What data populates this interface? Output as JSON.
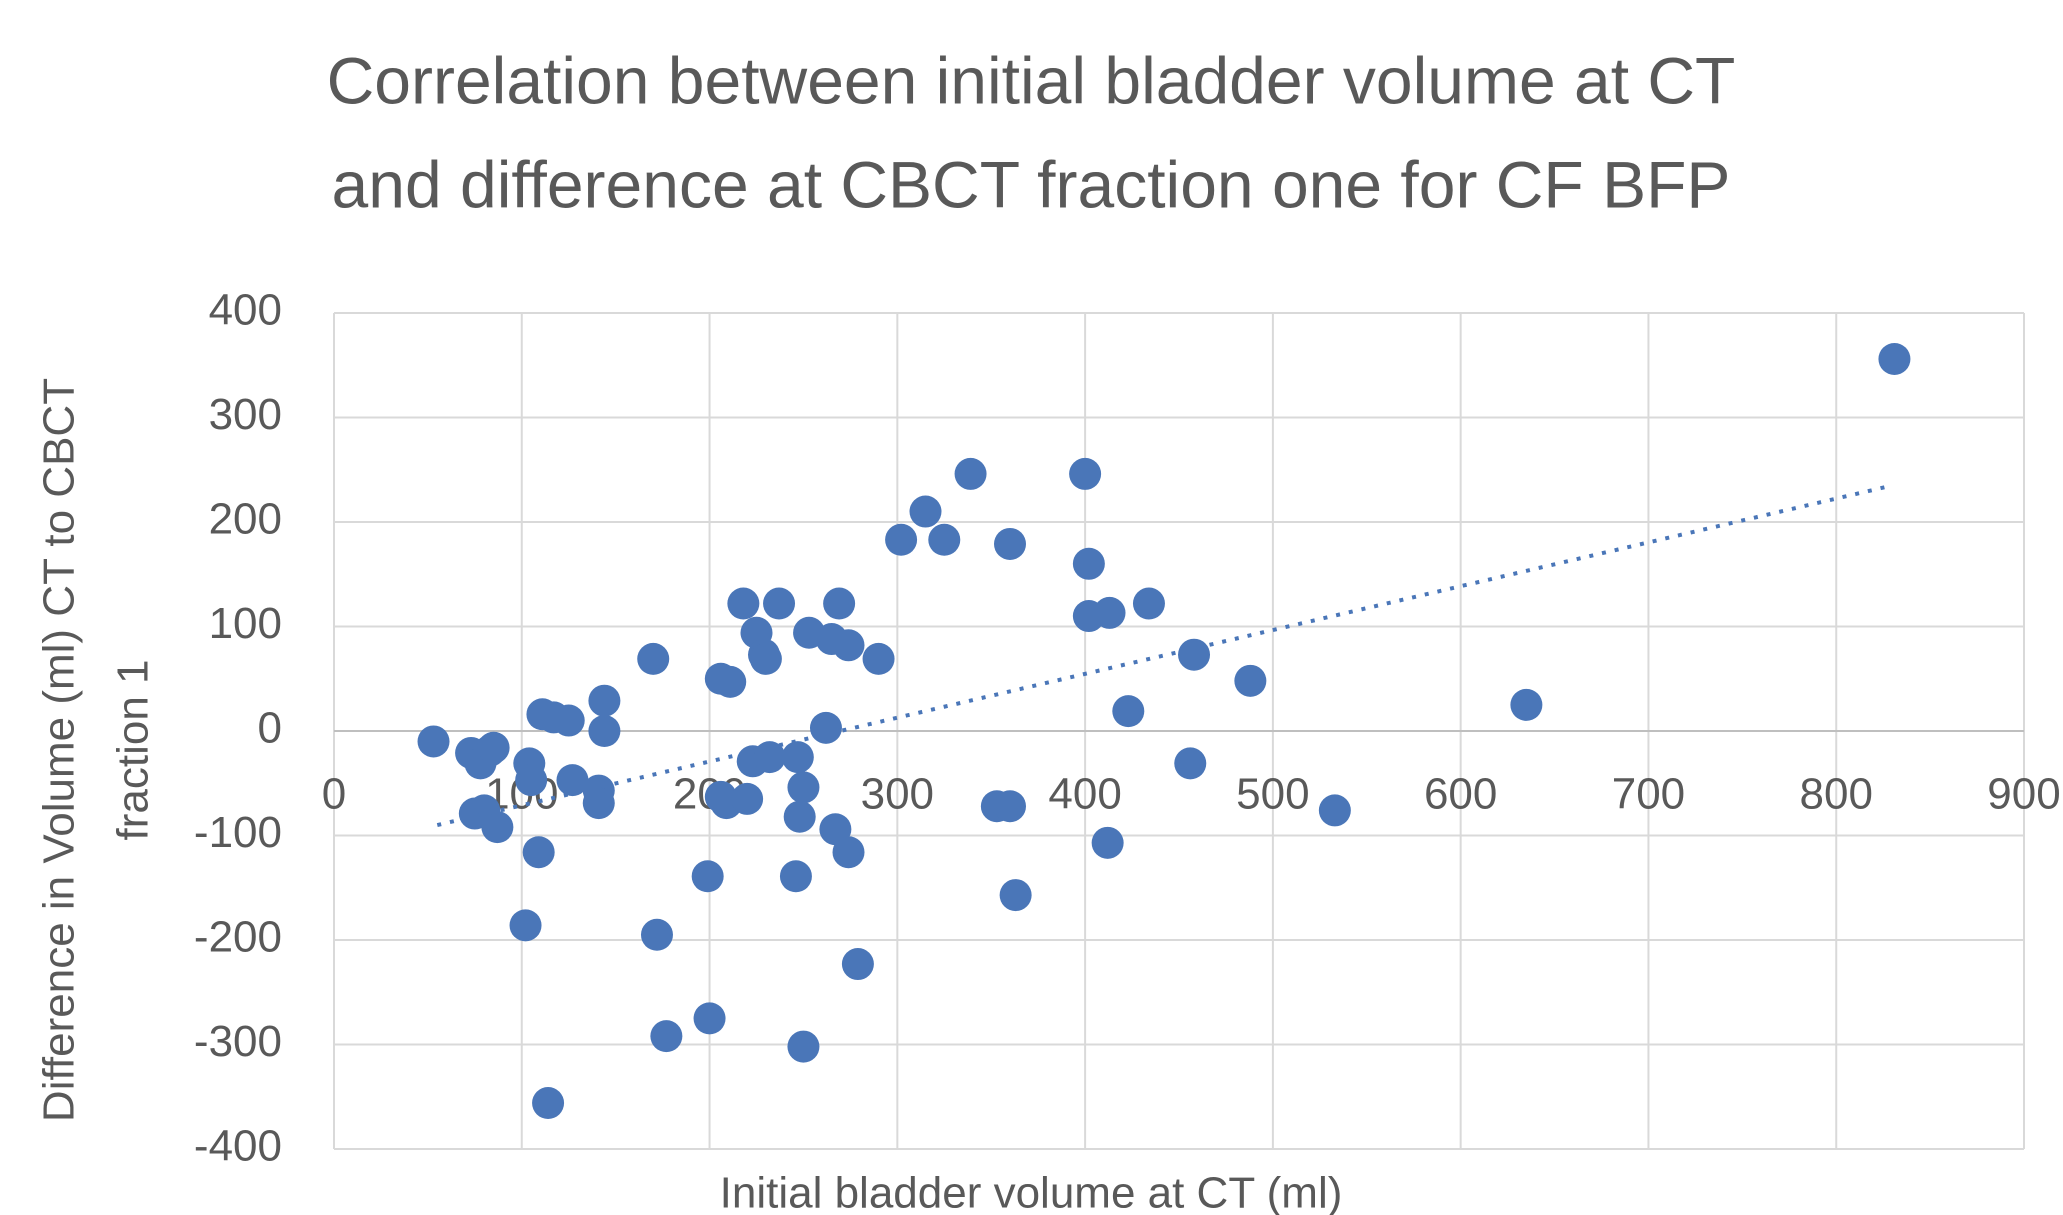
{
  "chart_data": {
    "type": "scatter",
    "title": [
      "Correlation between initial bladder volume at CT",
      "and difference at CBCT fraction one for CF BFP"
    ],
    "x_label": "Initial bladder volume at CT (ml)",
    "y_label": [
      "Difference in Volume (ml) CT to CBCT",
      "fraction 1"
    ],
    "color": "#4a76b8",
    "grid": true,
    "xlim": [
      0,
      900
    ],
    "xticks": [
      0,
      100,
      200,
      300,
      400,
      500,
      600,
      700,
      800,
      900
    ],
    "ylim": [
      -400,
      400
    ],
    "yticks": [
      -400,
      -300,
      -200,
      -100,
      0,
      100,
      200,
      300,
      400
    ],
    "x": [
      53,
      73,
      75,
      78,
      83,
      85,
      87,
      80,
      104,
      105,
      109,
      102,
      111,
      117,
      125,
      127,
      141,
      141,
      144,
      144,
      114,
      170,
      172,
      177,
      199,
      200,
      206,
      211,
      206,
      209,
      220,
      218,
      223,
      225,
      229,
      230,
      232,
      237,
      247,
      250,
      248,
      246,
      250,
      253,
      262,
      265,
      269,
      274,
      267,
      274,
      279,
      290,
      302,
      315,
      325,
      339,
      353,
      360,
      360,
      363,
      400,
      402,
      402,
      413,
      412,
      423,
      434,
      456,
      458,
      488,
      533,
      635,
      831
    ],
    "y": [
      -10,
      -21,
      -79,
      -31,
      -19,
      -16,
      -92,
      -76,
      -31,
      -47,
      -116,
      -186,
      16,
      13,
      10,
      -47,
      -57,
      -69,
      29,
      0,
      -356,
      69,
      -195,
      -292,
      -139,
      -275,
      50,
      47,
      -63,
      -69,
      -65,
      122,
      -29,
      94,
      73,
      69,
      -25,
      122,
      -25,
      -54,
      -82,
      -139,
      -302,
      94,
      3,
      88,
      122,
      82,
      -94,
      -116,
      -223,
      69,
      183,
      210,
      183,
      246,
      -72,
      -72,
      179,
      -157,
      246,
      160,
      110,
      113,
      -107,
      19,
      122,
      -31,
      73,
      48,
      -76,
      25,
      356
    ],
    "trendline": {
      "style": "dotted",
      "x": [
        55,
        830
      ],
      "y": [
        -90,
        235
      ]
    }
  }
}
